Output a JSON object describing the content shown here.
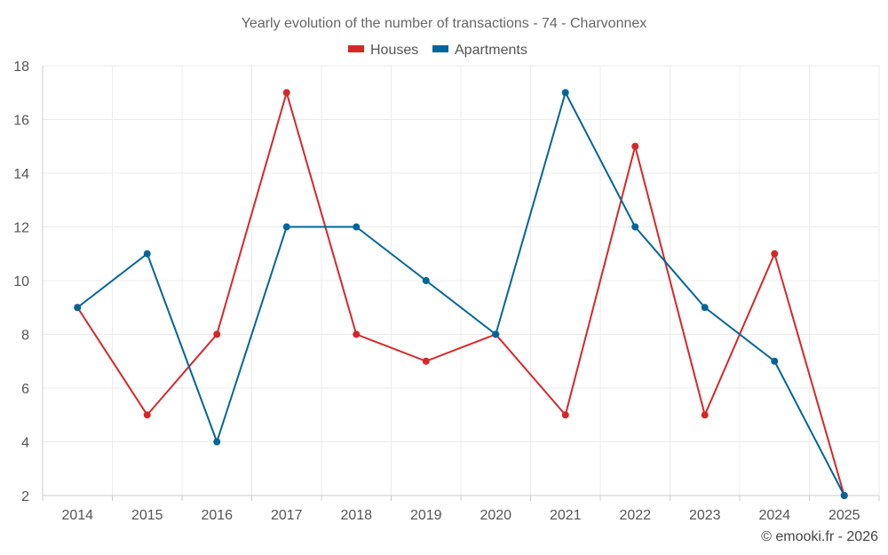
{
  "chart_data": {
    "type": "line",
    "title": "Yearly evolution of the number of transactions - 74 - Charvonnex",
    "categories": [
      "2014",
      "2015",
      "2016",
      "2017",
      "2018",
      "2019",
      "2020",
      "2021",
      "2022",
      "2023",
      "2024",
      "2025"
    ],
    "series": [
      {
        "name": "Houses",
        "color": "#d62728",
        "values": [
          9,
          5,
          8,
          17,
          8,
          7,
          8,
          5,
          15,
          5,
          11,
          2
        ]
      },
      {
        "name": "Apartments",
        "color": "#006699",
        "values": [
          9,
          11,
          4,
          12,
          12,
          10,
          8,
          17,
          12,
          9,
          7,
          2
        ]
      }
    ],
    "ylim": [
      2,
      18
    ],
    "yticks": [
      2,
      4,
      6,
      8,
      10,
      12,
      14,
      16,
      18
    ],
    "grid": true,
    "legend": "top-center",
    "xlabel": "",
    "ylabel": ""
  },
  "credit": "© emooki.fr - 2026"
}
